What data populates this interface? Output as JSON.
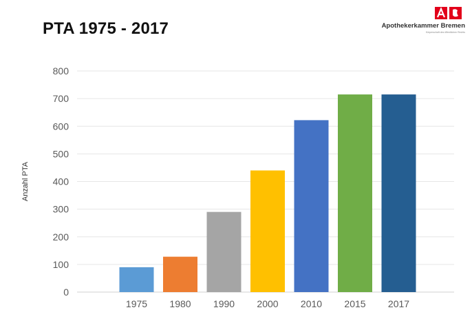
{
  "header": {
    "title": "PTA 1975 - 2017"
  },
  "logo": {
    "name": "Apothekerkammer Bremen",
    "subtitle": "Körperschaft des öffentlichen Rechts"
  },
  "chart_data": {
    "type": "bar",
    "categories": [
      "1975",
      "1980",
      "1990",
      "2000",
      "2010",
      "2015",
      "2017"
    ],
    "values": [
      90,
      128,
      290,
      440,
      622,
      715,
      715
    ],
    "colors": [
      "#5B9BD5",
      "#ED7D31",
      "#A5A5A5",
      "#FFC000",
      "#4472C4",
      "#70AD47",
      "#255E91"
    ],
    "highlight_category_color": "#E02020",
    "ylabel": "Anzahl PTA",
    "ylim": [
      0,
      800
    ],
    "yticks": [
      0,
      100,
      200,
      300,
      400,
      500,
      600,
      700,
      800
    ],
    "grid": true,
    "legend": "none"
  }
}
